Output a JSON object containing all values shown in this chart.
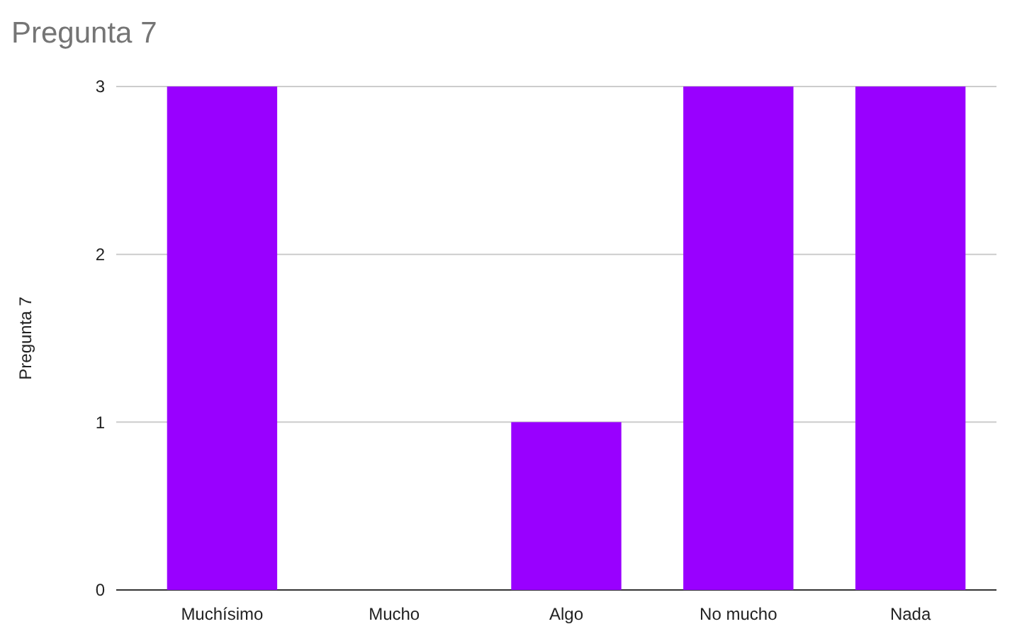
{
  "chart_data": {
    "type": "bar",
    "title": "Pregunta 7",
    "ylabel": "Pregunta 7",
    "categories": [
      "Muchísimo",
      "Mucho",
      "Algo",
      "No mucho",
      "Nada"
    ],
    "values": [
      3,
      0,
      1,
      3,
      3
    ],
    "color": "#9900ff",
    "ylim": [
      0,
      3
    ],
    "yticks": [
      0,
      1,
      2,
      3
    ],
    "grid": "y"
  }
}
